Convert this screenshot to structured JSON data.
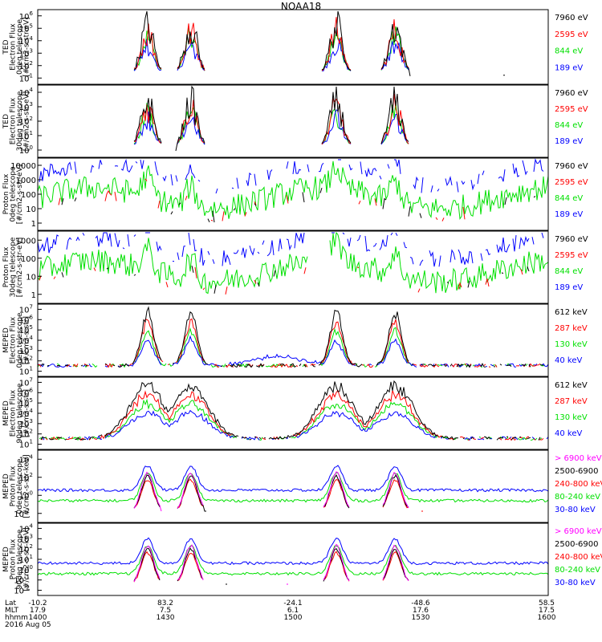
{
  "title": "NOAA18",
  "colors": {
    "black": "#000000",
    "red": "#ff0000",
    "green": "#00e000",
    "blue": "#0000ff",
    "magenta": "#ff00ff"
  },
  "chart_data": [
    {
      "type": "line",
      "ylabel": [
        "TED",
        "Electron Flux",
        "0deg telescope",
        "[#/cm2-s-str-eV]"
      ],
      "yscale": "log",
      "ylim": [
        1,
        1000000
      ],
      "yticks": [
        "10^1",
        "10^2",
        "10^3",
        "10^4",
        "10^5",
        "10^6"
      ],
      "series": [
        {
          "name": "7960 eV",
          "color": "black"
        },
        {
          "name": "2595 eV",
          "color": "red"
        },
        {
          "name": "844 eV",
          "color": "green"
        },
        {
          "name": "189 eV",
          "color": "blue"
        }
      ]
    },
    {
      "type": "line",
      "ylabel": [
        "TED",
        "Electron Flux",
        "30deg telescope",
        "[#/cm2-s-str-eV]"
      ],
      "yscale": "log",
      "ylim": [
        1,
        100000
      ],
      "yticks": [
        "10^0",
        "10^1",
        "10^2",
        "10^3",
        "10^4"
      ],
      "series": [
        {
          "name": "7960 eV",
          "color": "black"
        },
        {
          "name": "2595 eV",
          "color": "red"
        },
        {
          "name": "844 eV",
          "color": "green"
        },
        {
          "name": "189 eV",
          "color": "blue"
        }
      ]
    },
    {
      "type": "line",
      "ylabel": [
        "Proton Flux",
        "0deg telescope",
        "[#/cm2-s-str-eV]"
      ],
      "yscale": "log",
      "ylim": [
        1,
        10000
      ],
      "yticks": [
        "1",
        "10",
        "100",
        "1000",
        "10000"
      ],
      "series": [
        {
          "name": "7960 eV",
          "color": "black"
        },
        {
          "name": "2595 eV",
          "color": "red"
        },
        {
          "name": "844 eV",
          "color": "green"
        },
        {
          "name": "189 eV",
          "color": "blue"
        }
      ]
    },
    {
      "type": "line",
      "ylabel": [
        "Proton Flux",
        "30deg telescope",
        "[#/cm2-s-str-eV]"
      ],
      "yscale": "log",
      "ylim": [
        1,
        10000
      ],
      "yticks": [
        "1",
        "10",
        "100",
        "1000"
      ],
      "series": [
        {
          "name": "7960 eV",
          "color": "black"
        },
        {
          "name": "2595 eV",
          "color": "red"
        },
        {
          "name": "844 eV",
          "color": "green"
        },
        {
          "name": "189 eV",
          "color": "blue"
        }
      ]
    },
    {
      "type": "line",
      "ylabel": [
        "MEPED",
        "Electron Flux",
        "0deg telescope",
        "[#/cm2-s-str]"
      ],
      "yscale": "log",
      "ylim": [
        1,
        10000000
      ],
      "yticks": [
        "10^1",
        "10^2",
        "10^3",
        "10^4",
        "10^5",
        "10^6",
        "10^7"
      ],
      "series": [
        {
          "name": "612 keV",
          "color": "black"
        },
        {
          "name": "287 keV",
          "color": "red"
        },
        {
          "name": "130 keV",
          "color": "green"
        },
        {
          "name": "40 keV",
          "color": "blue"
        }
      ]
    },
    {
      "type": "line",
      "ylabel": [
        "MEPED",
        "Electron Flux",
        "90deg telescope",
        "[#/cm2-s-str]"
      ],
      "yscale": "log",
      "ylim": [
        1,
        10000000
      ],
      "yticks": [
        "10^1",
        "10^2",
        "10^3",
        "10^4",
        "10^5",
        "10^6",
        "10^7"
      ],
      "series": [
        {
          "name": "612 keV",
          "color": "black"
        },
        {
          "name": "287 keV",
          "color": "red"
        },
        {
          "name": "130 keV",
          "color": "green"
        },
        {
          "name": "40 keV",
          "color": "blue"
        }
      ]
    },
    {
      "type": "line",
      "ylabel": [
        "MEPED",
        "Proton Flux",
        "0deg telescope",
        "[#/cm2-s-str-keV]"
      ],
      "yscale": "log",
      "ylim": [
        0.001,
        100000
      ],
      "yticks": [
        "10^-2",
        "10^0",
        "10^2",
        "10^4"
      ],
      "series": [
        {
          "name": "> 6900 keV",
          "color": "magenta"
        },
        {
          "name": "2500-6900",
          "color": "black"
        },
        {
          "name": "240-800 keV",
          "color": "red"
        },
        {
          "name": "80-240 keV",
          "color": "green"
        },
        {
          "name": "30-80 keV",
          "color": "blue"
        }
      ]
    },
    {
      "type": "line",
      "ylabel": [
        "MEPED",
        "Proton Flux",
        "90deg telescope",
        "[#/cm2-s-str-keV]"
      ],
      "yscale": "log",
      "ylim": [
        0.001,
        100000
      ],
      "yticks": [
        "10^-2",
        "10^-1",
        "10^0",
        "10^1",
        "10^2",
        "10^3",
        "10^4"
      ],
      "series": [
        {
          "name": "> 6900 keV",
          "color": "magenta"
        },
        {
          "name": "2500-6900",
          "color": "black"
        },
        {
          "name": "240-800 keV",
          "color": "red"
        },
        {
          "name": "80-240 keV",
          "color": "green"
        },
        {
          "name": "30-80 keV",
          "color": "blue"
        }
      ]
    }
  ],
  "x_axis": {
    "row_labels": [
      "Lat",
      "MLT",
      "hhmm"
    ],
    "ticks": [
      {
        "Lat": "-10.2",
        "MLT": "17.9",
        "hhmm": "1400"
      },
      {
        "Lat": "83.2",
        "MLT": "7.5",
        "hhmm": "1430"
      },
      {
        "Lat": "-24.1",
        "MLT": "6.1",
        "hhmm": "1500"
      },
      {
        "Lat": "-48.6",
        "MLT": "17.6",
        "hhmm": "1530"
      },
      {
        "Lat": "58.5",
        "MLT": "17.5",
        "hhmm": "1600"
      }
    ],
    "date": "2016 Aug 05"
  }
}
